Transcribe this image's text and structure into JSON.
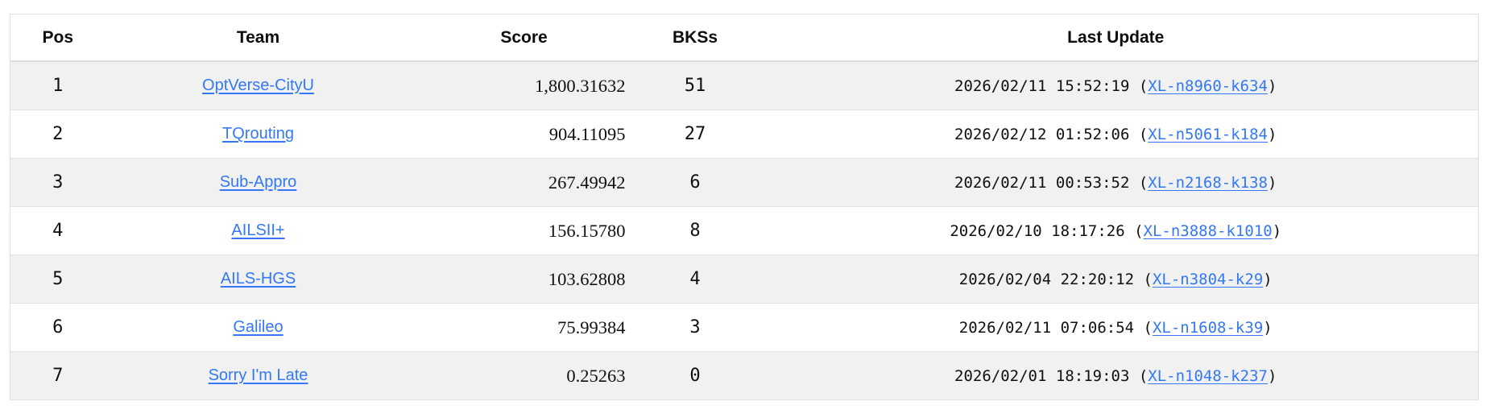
{
  "colors": {
    "link_blue": "#3478f6",
    "stripe_gray": "#f1f1f2",
    "border_gray": "#dee2e6"
  },
  "table": {
    "columns": [
      {
        "key": "pos",
        "label": "Pos"
      },
      {
        "key": "team",
        "label": "Team"
      },
      {
        "key": "score",
        "label": "Score"
      },
      {
        "key": "bkss",
        "label": "BKSs"
      },
      {
        "key": "last_update",
        "label": "Last Update"
      }
    ],
    "last_update_format": "{timestamp} ({instance})",
    "rows": [
      {
        "pos": "1",
        "team": "OptVerse-CityU",
        "score": "1,800.31632",
        "bkss": "51",
        "timestamp": "2026/02/11 15:52:19",
        "instance": "XL-n8960-k634"
      },
      {
        "pos": "2",
        "team": "TQrouting",
        "score": "904.11095",
        "bkss": "27",
        "timestamp": "2026/02/12 01:52:06",
        "instance": "XL-n5061-k184"
      },
      {
        "pos": "3",
        "team": "Sub-Appro",
        "score": "267.49942",
        "bkss": "6",
        "timestamp": "2026/02/11 00:53:52",
        "instance": "XL-n2168-k138"
      },
      {
        "pos": "4",
        "team": "AILSII+",
        "score": "156.15780",
        "bkss": "8",
        "timestamp": "2026/02/10 18:17:26",
        "instance": "XL-n3888-k1010"
      },
      {
        "pos": "5",
        "team": "AILS-HGS",
        "score": "103.62808",
        "bkss": "4",
        "timestamp": "2026/02/04 22:20:12",
        "instance": "XL-n3804-k29"
      },
      {
        "pos": "6",
        "team": "Galileo",
        "score": "75.99384",
        "bkss": "3",
        "timestamp": "2026/02/11 07:06:54",
        "instance": "XL-n1608-k39"
      },
      {
        "pos": "7",
        "team": "Sorry I'm Late",
        "score": "0.25263",
        "bkss": "0",
        "timestamp": "2026/02/01 18:19:03",
        "instance": "XL-n1048-k237"
      }
    ]
  }
}
